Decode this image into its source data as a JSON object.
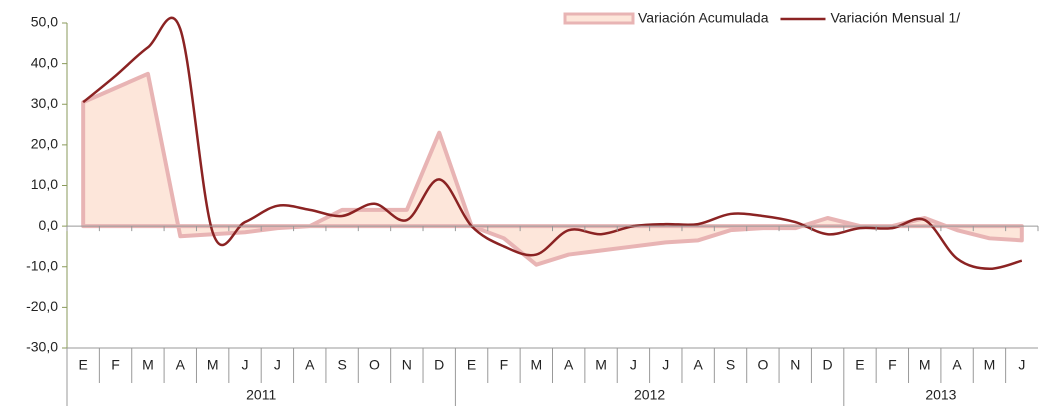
{
  "chart_data": {
    "type": "line",
    "groups": [
      {
        "label": "2011",
        "categories": [
          "E",
          "F",
          "M",
          "A",
          "M",
          "J",
          "J",
          "A",
          "S",
          "O",
          "N",
          "D"
        ]
      },
      {
        "label": "2012",
        "categories": [
          "E",
          "F",
          "M",
          "A",
          "M",
          "J",
          "J",
          "A",
          "S",
          "O",
          "N",
          "D"
        ]
      },
      {
        "label": "2013",
        "categories": [
          "E",
          "F",
          "M",
          "A",
          "M",
          "J"
        ]
      }
    ],
    "series": [
      {
        "name": "Variación Acumulada",
        "kind": "area",
        "color": "#e8b4b4",
        "fill": "#fde6da",
        "values": [
          30.5,
          34,
          37.5,
          -2.5,
          -2,
          -1.5,
          -0.5,
          0,
          4,
          4,
          4,
          23,
          0,
          -3,
          -9.5,
          -7,
          -6,
          -5,
          -4,
          -3.5,
          -1,
          -0.5,
          -0.5,
          2,
          0,
          0,
          2,
          -1,
          -3,
          -3.5
        ]
      },
      {
        "name": "Variación Mensual 1/",
        "kind": "line",
        "color": "#8b2323",
        "values": [
          30.5,
          37,
          44,
          48.5,
          -1.5,
          1,
          5,
          4,
          2.5,
          5.5,
          1.5,
          11.5,
          0,
          -5,
          -7,
          -1,
          -2,
          0,
          0.5,
          0.5,
          3,
          2.5,
          1,
          -2,
          -0.5,
          -0.5,
          1.5,
          -8,
          -10.5,
          -8.5
        ]
      }
    ],
    "ylim": [
      -30,
      50
    ],
    "yticks": [
      {
        "value": -30,
        "label": "-30,0"
      },
      {
        "value": -20,
        "label": "-20,0"
      },
      {
        "value": -10,
        "label": "-10,0"
      },
      {
        "value": 0,
        "label": "0,0"
      },
      {
        "value": 10,
        "label": "10,0"
      },
      {
        "value": 20,
        "label": "20,0"
      },
      {
        "value": 30,
        "label": "30,0"
      },
      {
        "value": 40,
        "label": "40,0"
      },
      {
        "value": 50,
        "label": "50,0"
      }
    ],
    "legend": "top-right"
  }
}
